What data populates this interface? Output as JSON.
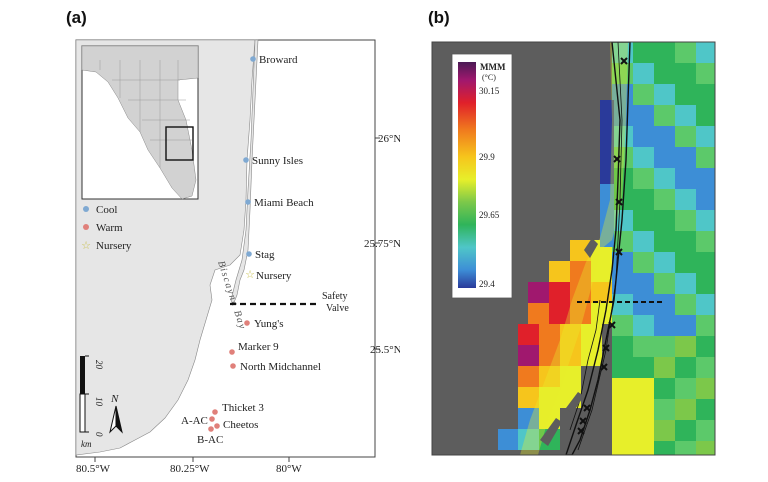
{
  "panel_a": {
    "label": "(a)",
    "lat_ticks": [
      "26°N",
      "25.75°N",
      "25.5°N"
    ],
    "lon_ticks": [
      "80.5°W",
      "80.25°W",
      "80°W"
    ],
    "sites": [
      {
        "name": "Broward",
        "type": "cool"
      },
      {
        "name": "Sunny Isles",
        "type": "cool"
      },
      {
        "name": "Miami Beach",
        "type": "cool"
      },
      {
        "name": "Stag",
        "type": "cool"
      },
      {
        "name": "Nursery",
        "type": "nursery"
      },
      {
        "name": "Yung's",
        "type": "warm"
      },
      {
        "name": "Marker 9",
        "type": "warm"
      },
      {
        "name": "North Midchannel",
        "type": "warm"
      },
      {
        "name": "Thicket 3",
        "type": "warm"
      },
      {
        "name": "Cheetos",
        "type": "warm"
      },
      {
        "name": "A-AC",
        "type": "warm"
      },
      {
        "name": "B-AC",
        "type": "warm"
      }
    ],
    "legend": [
      {
        "label": "Cool",
        "type": "cool"
      },
      {
        "label": "Warm",
        "type": "warm"
      },
      {
        "label": "Nursery",
        "type": "nursery"
      }
    ],
    "safety_valve_label": [
      "Safety",
      "Valve"
    ],
    "bay_label": "Biscayne Bay",
    "scale_labels": [
      "20",
      "10",
      "0"
    ],
    "scale_unit": "km",
    "north_label": "N",
    "colors": {
      "cool": "#7fa9d2",
      "warm": "#e0807a",
      "nursery": "#d9d26a",
      "land": "#e6e6e6"
    }
  },
  "panel_b": {
    "label": "(b)",
    "colorbar_title": "MMM",
    "colorbar_unit": "(°C)",
    "colorbar_ticks": [
      "30.15",
      "29.9",
      "29.65",
      "29.4"
    ],
    "colorbar_range": [
      29.4,
      30.15
    ],
    "colors": {
      "land": "#5d5d5d"
    }
  }
}
